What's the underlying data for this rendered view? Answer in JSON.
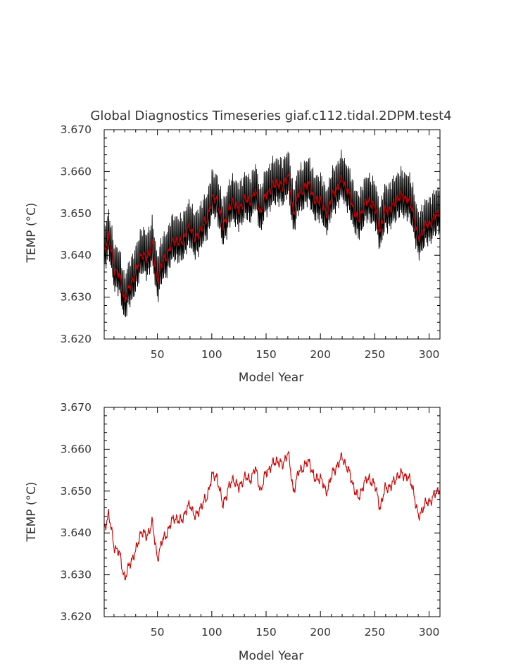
{
  "chart_data": [
    {
      "type": "line",
      "title": "Global Diagnostics Timeseries giaf.c112.tidal.2DPM.test4",
      "xlabel": "Model Year",
      "ylabel": "TEMP (°C)",
      "xlim": [
        1,
        310
      ],
      "ylim": [
        3.62,
        3.67
      ],
      "xticks": [
        50,
        100,
        150,
        200,
        250,
        300
      ],
      "xtick_labels": [
        "50",
        "100",
        "150",
        "200",
        "250",
        "300"
      ],
      "yticks": [
        3.62,
        3.63,
        3.64,
        3.65,
        3.66,
        3.67
      ],
      "ytick_labels": [
        "3.620",
        "3.630",
        "3.640",
        "3.650",
        "3.660",
        "3.670"
      ],
      "grid": false,
      "series": [
        {
          "style": "monthly",
          "color": "#000000",
          "seasonal_amplitude": 0.0045,
          "x": [
            1,
            5,
            10,
            15,
            20,
            25,
            30,
            35,
            40,
            45,
            50,
            55,
            60,
            65,
            70,
            75,
            80,
            85,
            90,
            95,
            100,
            105,
            110,
            115,
            120,
            125,
            130,
            135,
            140,
            145,
            150,
            155,
            160,
            165,
            170,
            175,
            180,
            185,
            190,
            195,
            200,
            205,
            210,
            215,
            220,
            225,
            230,
            235,
            240,
            245,
            250,
            255,
            260,
            265,
            270,
            275,
            280,
            285,
            290,
            295,
            300,
            305,
            310
          ],
          "y": [
            3.641,
            3.6445,
            3.637,
            3.635,
            3.629,
            3.633,
            3.6355,
            3.6405,
            3.639,
            3.6425,
            3.634,
            3.6385,
            3.6405,
            3.644,
            3.6425,
            3.6445,
            3.647,
            3.6435,
            3.6465,
            3.648,
            3.6535,
            3.6535,
            3.6465,
            3.6505,
            3.653,
            3.6505,
            3.6535,
            3.6525,
            3.6555,
            3.65,
            3.6545,
            3.656,
            3.6575,
            3.656,
            3.6595,
            3.65,
            3.6545,
            3.656,
            3.657,
            3.6525,
            3.6535,
            3.6495,
            3.6535,
            3.656,
            3.658,
            3.6555,
            3.6515,
            3.648,
            3.652,
            3.653,
            3.6515,
            3.646,
            3.651,
            3.651,
            3.6535,
            3.654,
            3.6535,
            3.651,
            3.6435,
            3.6465,
            3.6475,
            3.649,
            3.6505
          ]
        },
        {
          "style": "annual",
          "color": "#cc0000",
          "x": [
            1,
            5,
            10,
            15,
            20,
            25,
            30,
            35,
            40,
            45,
            50,
            55,
            60,
            65,
            70,
            75,
            80,
            85,
            90,
            95,
            100,
            105,
            110,
            115,
            120,
            125,
            130,
            135,
            140,
            145,
            150,
            155,
            160,
            165,
            170,
            175,
            180,
            185,
            190,
            195,
            200,
            205,
            210,
            215,
            220,
            225,
            230,
            235,
            240,
            245,
            250,
            255,
            260,
            265,
            270,
            275,
            280,
            285,
            290,
            295,
            300,
            305,
            310
          ],
          "y": [
            3.641,
            3.6445,
            3.637,
            3.635,
            3.629,
            3.633,
            3.6355,
            3.6405,
            3.639,
            3.6425,
            3.634,
            3.6385,
            3.6405,
            3.644,
            3.6425,
            3.6445,
            3.647,
            3.6435,
            3.6465,
            3.648,
            3.6535,
            3.6535,
            3.6465,
            3.6505,
            3.653,
            3.6505,
            3.6535,
            3.6525,
            3.6555,
            3.65,
            3.6545,
            3.656,
            3.6575,
            3.656,
            3.6595,
            3.65,
            3.6545,
            3.656,
            3.657,
            3.6525,
            3.6535,
            3.6495,
            3.6535,
            3.656,
            3.658,
            3.6555,
            3.6515,
            3.648,
            3.652,
            3.653,
            3.6515,
            3.646,
            3.651,
            3.651,
            3.6535,
            3.654,
            3.6535,
            3.651,
            3.6435,
            3.6465,
            3.6475,
            3.649,
            3.6505
          ]
        }
      ]
    },
    {
      "type": "line",
      "title": "",
      "xlabel": "Model Year",
      "ylabel": "TEMP (°C)",
      "xlim": [
        1,
        310
      ],
      "ylim": [
        3.62,
        3.67
      ],
      "xticks": [
        50,
        100,
        150,
        200,
        250,
        300
      ],
      "xtick_labels": [
        "50",
        "100",
        "150",
        "200",
        "250",
        "300"
      ],
      "yticks": [
        3.62,
        3.63,
        3.64,
        3.65,
        3.66,
        3.67
      ],
      "ytick_labels": [
        "3.620",
        "3.630",
        "3.640",
        "3.650",
        "3.660",
        "3.670"
      ],
      "grid": false,
      "series": [
        {
          "style": "annual",
          "color": "#cc0000",
          "x": [
            1,
            5,
            10,
            15,
            20,
            25,
            30,
            35,
            40,
            45,
            50,
            55,
            60,
            65,
            70,
            75,
            80,
            85,
            90,
            95,
            100,
            105,
            110,
            115,
            120,
            125,
            130,
            135,
            140,
            145,
            150,
            155,
            160,
            165,
            170,
            175,
            180,
            185,
            190,
            195,
            200,
            205,
            210,
            215,
            220,
            225,
            230,
            235,
            240,
            245,
            250,
            255,
            260,
            265,
            270,
            275,
            280,
            285,
            290,
            295,
            300,
            305,
            310
          ],
          "y": [
            3.641,
            3.6445,
            3.637,
            3.635,
            3.629,
            3.633,
            3.6355,
            3.6405,
            3.639,
            3.6425,
            3.634,
            3.6385,
            3.6405,
            3.644,
            3.6425,
            3.6445,
            3.647,
            3.6435,
            3.6465,
            3.648,
            3.6535,
            3.6535,
            3.6465,
            3.6505,
            3.653,
            3.6505,
            3.6535,
            3.6525,
            3.6555,
            3.65,
            3.6545,
            3.656,
            3.6575,
            3.656,
            3.6595,
            3.65,
            3.6545,
            3.656,
            3.657,
            3.6525,
            3.6535,
            3.6495,
            3.6535,
            3.656,
            3.658,
            3.6555,
            3.6515,
            3.648,
            3.652,
            3.653,
            3.6515,
            3.646,
            3.651,
            3.651,
            3.6535,
            3.654,
            3.6535,
            3.651,
            3.6435,
            3.6465,
            3.6475,
            3.649,
            3.6505
          ]
        }
      ]
    }
  ]
}
